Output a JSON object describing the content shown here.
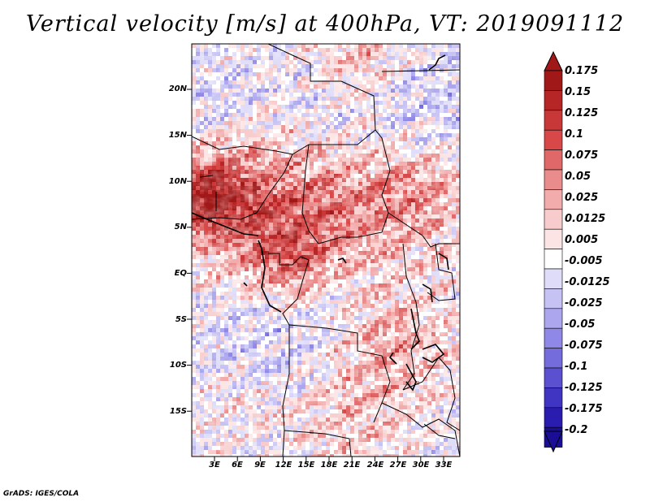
{
  "title": "Vertical velocity [m/s] at 400hPa, VT: 2019091112",
  "credit": "GrADS: IGES/COLA",
  "map": {
    "lat_labels": [
      "20N",
      "15N",
      "10N",
      "5N",
      "EQ",
      "5S",
      "10S",
      "15S"
    ],
    "lon_labels": [
      "3E",
      "6E",
      "9E",
      "12E",
      "15E",
      "18E",
      "21E",
      "24E",
      "27E",
      "30E",
      "33E"
    ],
    "domain_extent": {
      "lon_min": 0,
      "lon_max": 35,
      "lat_min": -20,
      "lat_max": 25
    }
  },
  "colorbar": {
    "labels": [
      "0.175",
      "0.15",
      "0.125",
      "0.1",
      "0.075",
      "0.05",
      "0.025",
      "0.0125",
      "0.005",
      "-0.005",
      "-0.0125",
      "-0.025",
      "-0.05",
      "-0.075",
      "-0.1",
      "-0.125",
      "-0.175",
      "-0.2"
    ],
    "colors": [
      "#a01818",
      "#b62626",
      "#c83838",
      "#d84848",
      "#e06868",
      "#ea8c8c",
      "#f2acac",
      "#f8cccc",
      "#fce4e4",
      "#ffffff",
      "#dedcf8",
      "#c6c2f4",
      "#aca6ee",
      "#9088e6",
      "#746cdc",
      "#5a50d0",
      "#4034c2",
      "#2a1cae",
      "#1a0e96"
    ],
    "top_arrow_color": "#a01818",
    "bottom_arrow_color": "#1a0e96"
  },
  "colors": {
    "positive_accent": "#d84848",
    "negative_accent": "#6b63dc",
    "border": "#000000"
  }
}
